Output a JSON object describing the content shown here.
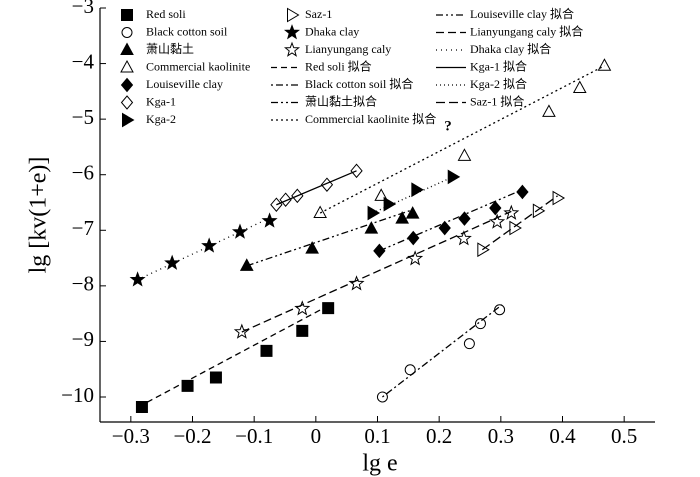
{
  "chart_data": {
    "type": "scatter",
    "x_label": "lg e",
    "y_label": "lg [kv(1+e)]",
    "annotation": "?",
    "xlim": [
      -0.35,
      0.55
    ],
    "ylim": [
      -10.45,
      -3
    ],
    "xticks": [
      {
        "value": -0.3,
        "label": "−0.3"
      },
      {
        "value": -0.2,
        "label": "−0.2"
      },
      {
        "value": -0.1,
        "label": "−0.1"
      },
      0,
      0.1,
      0.2,
      0.3,
      0.4,
      0.5
    ],
    "yticks": [
      {
        "value": -3,
        "label": "−3"
      },
      {
        "value": -4,
        "label": "−4"
      },
      {
        "value": -5,
        "label": "−5"
      },
      {
        "value": -6,
        "label": "−6"
      },
      {
        "value": -7,
        "label": "−7"
      },
      {
        "value": -8,
        "label": "−8"
      },
      {
        "value": -9,
        "label": "−9"
      },
      {
        "value": -10,
        "label": "−10"
      }
    ],
    "color": "#000000",
    "series": [
      {
        "name": "Red soli",
        "marker": "square-filled",
        "x": [
          -0.282,
          -0.208,
          -0.162,
          -0.08,
          -0.022,
          0.02
        ],
        "values": [
          -10.18,
          -9.8,
          -9.65,
          -9.17,
          -8.81,
          -8.4
        ]
      },
      {
        "name": "Black cotton soil",
        "marker": "circle-open",
        "x": [
          0.108,
          0.153,
          0.249,
          0.267,
          0.298
        ],
        "values": [
          -10.0,
          -9.51,
          -9.04,
          -8.68,
          -8.43
        ]
      },
      {
        "name": "萧山黏土",
        "marker": "triangle-filled",
        "x": [
          -0.112,
          -0.006,
          0.09,
          0.14,
          0.157
        ],
        "values": [
          -7.64,
          -7.33,
          -6.97,
          -6.79,
          -6.7
        ]
      },
      {
        "name": "Commercial kaolinite",
        "marker": "triangle-open",
        "x": [
          0.007,
          0.106,
          0.241,
          0.378,
          0.428,
          0.468
        ],
        "values": [
          -6.69,
          -6.38,
          -5.66,
          -4.87,
          -4.44,
          -4.04
        ]
      },
      {
        "name": "Louiseville clay",
        "marker": "diamond-filled",
        "x": [
          0.103,
          0.158,
          0.209,
          0.241,
          0.291,
          0.335
        ],
        "values": [
          -7.37,
          -7.14,
          -6.96,
          -6.79,
          -6.6,
          -6.31
        ]
      },
      {
        "name": "Kga-1",
        "marker": "diamond-open",
        "x": [
          -0.064,
          -0.049,
          -0.03,
          0.018,
          0.066
        ],
        "values": [
          -6.54,
          -6.45,
          -6.38,
          -6.18,
          -5.93
        ]
      },
      {
        "name": "Kga-2",
        "marker": "right-filled",
        "x": [
          0.092,
          0.118,
          0.163,
          0.222
        ],
        "values": [
          -6.69,
          -6.53,
          -6.27,
          -6.04
        ]
      },
      {
        "name": "Saz-1",
        "marker": "right-open",
        "x": [
          0.27,
          0.322,
          0.36,
          0.392
        ],
        "values": [
          -7.35,
          -6.96,
          -6.65,
          -6.42
        ]
      },
      {
        "name": "Dhaka clay",
        "marker": "star-filled",
        "x": [
          -0.289,
          -0.233,
          -0.173,
          -0.123,
          -0.075
        ],
        "values": [
          -7.89,
          -7.59,
          -7.28,
          -7.03,
          -6.83
        ]
      },
      {
        "name": "Lianyungang caly",
        "marker": "star-open",
        "x": [
          -0.12,
          -0.022,
          0.066,
          0.161,
          0.24,
          0.294,
          0.317
        ],
        "values": [
          -8.83,
          -8.41,
          -7.96,
          -7.51,
          -7.15,
          -6.85,
          -6.69
        ]
      },
      {
        "name": "Red soli 拟合",
        "dash": "6 4",
        "x": [
          -0.288,
          0.023
        ],
        "values": [
          -10.18,
          -8.34
        ]
      },
      {
        "name": "Black cotton soil 拟合",
        "dash": "2 3 7 3",
        "x": [
          0.108,
          0.302
        ],
        "values": [
          -10.0,
          -8.34
        ]
      },
      {
        "name": "萧山黏土拟合",
        "dash": "7 3 2 3 2 3",
        "x": [
          -0.112,
          0.157
        ],
        "values": [
          -7.64,
          -6.63
        ]
      },
      {
        "name": "Commercial kaolinite 拟合",
        "dash": "2 3",
        "x": [
          0.007,
          0.468
        ],
        "values": [
          -6.69,
          -4.04
        ]
      },
      {
        "name": "Louiseville clay 拟合",
        "dash": "7 3 2 3 2 3",
        "x": [
          0.103,
          0.335
        ],
        "values": [
          -7.37,
          -6.27
        ]
      },
      {
        "name": "Lianyungang caly 拟合",
        "dash": "8 4",
        "x": [
          -0.12,
          0.317
        ],
        "values": [
          -8.83,
          -6.66
        ]
      },
      {
        "name": "Dhaka clay 拟合",
        "dash": "1 4",
        "x": [
          -0.289,
          -0.075
        ],
        "values": [
          -7.89,
          -6.78
        ]
      },
      {
        "name": "Kga-1 拟合",
        "dash": "none",
        "x": [
          -0.064,
          0.066
        ],
        "values": [
          -6.54,
          -5.93
        ]
      },
      {
        "name": "Kga-2 拟合",
        "dash": "1 3",
        "x": [
          0.092,
          0.222
        ],
        "values": [
          -6.69,
          -6.04
        ]
      },
      {
        "name": "Saz-1 拟合",
        "dash": "9 4",
        "x": [
          0.27,
          0.392
        ],
        "values": [
          -7.35,
          -6.38
        ]
      }
    ]
  }
}
